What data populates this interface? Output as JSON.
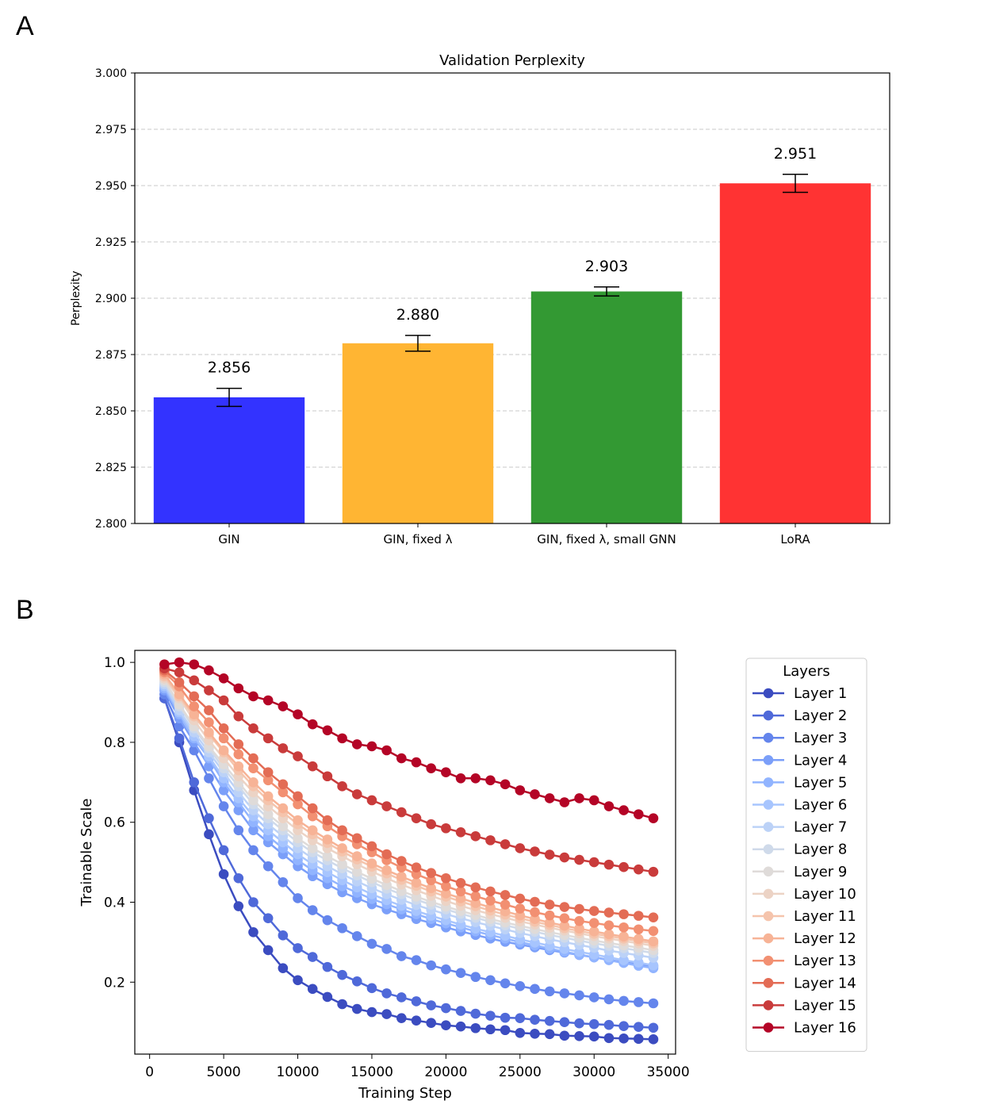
{
  "panels": {
    "a": "A",
    "b": "B"
  },
  "chart_data": [
    {
      "type": "bar",
      "title": "Validation Perplexity",
      "xlabel": "",
      "ylabel": "Perplexity",
      "ylim": [
        2.8,
        3.0
      ],
      "yticks": [
        "2.800",
        "2.825",
        "2.850",
        "2.875",
        "2.900",
        "2.925",
        "2.950",
        "2.975",
        "3.000"
      ],
      "grid": "y dashed",
      "categories": [
        "GIN",
        "GIN, fixed λ",
        "GIN, fixed λ, small GNN",
        "LoRA"
      ],
      "values": [
        2.856,
        2.88,
        2.903,
        2.951
      ],
      "errors": [
        0.004,
        0.0035,
        0.002,
        0.004
      ],
      "value_labels": [
        "2.856",
        "2.880",
        "2.903",
        "2.951"
      ],
      "colors": [
        "#3333ff",
        "#ffb533",
        "#339933",
        "#ff3333"
      ]
    },
    {
      "type": "line",
      "xlabel": "Training Step",
      "ylabel": "Trainable Scale",
      "xlim": [
        -1000,
        35500
      ],
      "ylim": [
        0.02,
        1.03
      ],
      "xticks": [
        "0",
        "5000",
        "10000",
        "15000",
        "20000",
        "25000",
        "30000",
        "35000"
      ],
      "yticks": [
        "0.2",
        "0.4",
        "0.6",
        "0.8",
        "1.0"
      ],
      "legend_title": "Layers",
      "legend_position": "outside-right",
      "x": [
        1000,
        2000,
        3000,
        4000,
        5000,
        6000,
        7000,
        8000,
        9000,
        10000,
        11000,
        12000,
        13000,
        14000,
        15000,
        16000,
        17000,
        18000,
        19000,
        20000,
        21000,
        22000,
        23000,
        24000,
        25000,
        26000,
        27000,
        28000,
        29000,
        30000,
        31000,
        32000,
        33000,
        34000
      ],
      "series": [
        {
          "name": "Layer 1",
          "color": "#3b4cc0",
          "values": [
            0.91,
            0.8,
            0.68,
            0.57,
            0.47,
            0.39,
            0.325,
            0.28,
            0.235,
            0.205,
            0.183,
            0.163,
            0.145,
            0.133,
            0.125,
            0.12,
            0.11,
            0.104,
            0.098,
            0.092,
            0.089,
            0.085,
            0.082,
            0.08,
            0.073,
            0.071,
            0.07,
            0.066,
            0.065,
            0.064,
            0.06,
            0.059,
            0.058,
            0.057
          ]
        },
        {
          "name": "Layer 2",
          "color": "#4f69d9",
          "values": [
            0.91,
            0.81,
            0.7,
            0.61,
            0.53,
            0.46,
            0.4,
            0.36,
            0.317,
            0.285,
            0.263,
            0.238,
            0.218,
            0.202,
            0.185,
            0.172,
            0.162,
            0.152,
            0.142,
            0.135,
            0.128,
            0.121,
            0.116,
            0.111,
            0.11,
            0.106,
            0.103,
            0.1,
            0.097,
            0.095,
            0.093,
            0.09,
            0.088,
            0.086
          ]
        },
        {
          "name": "Layer 3",
          "color": "#6485ec",
          "values": [
            0.92,
            0.84,
            0.78,
            0.71,
            0.64,
            0.58,
            0.53,
            0.49,
            0.45,
            0.41,
            0.38,
            0.355,
            0.335,
            0.315,
            0.296,
            0.283,
            0.265,
            0.255,
            0.242,
            0.232,
            0.223,
            0.213,
            0.205,
            0.197,
            0.19,
            0.183,
            0.177,
            0.172,
            0.167,
            0.162,
            0.157,
            0.153,
            0.15,
            0.147
          ]
        },
        {
          "name": "Layer 4",
          "color": "#7b9ff9",
          "values": [
            0.93,
            0.86,
            0.8,
            0.74,
            0.68,
            0.63,
            0.58,
            0.55,
            0.52,
            0.49,
            0.465,
            0.445,
            0.425,
            0.41,
            0.395,
            0.382,
            0.37,
            0.358,
            0.348,
            0.337,
            0.327,
            0.318,
            0.309,
            0.301,
            0.294,
            0.287,
            0.28,
            0.274,
            0.268,
            0.262,
            0.256,
            0.25,
            0.245,
            0.24
          ]
        },
        {
          "name": "Layer 5",
          "color": "#91b4ff",
          "values": [
            0.935,
            0.87,
            0.81,
            0.76,
            0.7,
            0.65,
            0.6,
            0.565,
            0.535,
            0.505,
            0.48,
            0.46,
            0.44,
            0.424,
            0.408,
            0.395,
            0.382,
            0.37,
            0.358,
            0.347,
            0.337,
            0.327,
            0.318,
            0.309,
            0.3,
            0.292,
            0.284,
            0.276,
            0.269,
            0.262,
            0.255,
            0.248,
            0.241,
            0.235
          ]
        },
        {
          "name": "Layer 6",
          "color": "#a7c5fe",
          "values": [
            0.94,
            0.875,
            0.815,
            0.765,
            0.71,
            0.66,
            0.615,
            0.58,
            0.55,
            0.52,
            0.495,
            0.475,
            0.455,
            0.437,
            0.42,
            0.405,
            0.391,
            0.378,
            0.366,
            0.355,
            0.344,
            0.334,
            0.325,
            0.316,
            0.307,
            0.299,
            0.291,
            0.283,
            0.276,
            0.269,
            0.262,
            0.255,
            0.249,
            0.242
          ]
        },
        {
          "name": "Layer 7",
          "color": "#bcd2f7",
          "values": [
            0.945,
            0.88,
            0.825,
            0.775,
            0.725,
            0.675,
            0.63,
            0.595,
            0.565,
            0.535,
            0.51,
            0.49,
            0.47,
            0.452,
            0.435,
            0.42,
            0.406,
            0.393,
            0.381,
            0.37,
            0.36,
            0.35,
            0.341,
            0.332,
            0.323,
            0.315,
            0.307,
            0.3,
            0.293,
            0.286,
            0.279,
            0.273,
            0.267,
            0.261
          ]
        },
        {
          "name": "Layer 8",
          "color": "#cfdaea",
          "values": [
            0.95,
            0.89,
            0.835,
            0.785,
            0.735,
            0.69,
            0.645,
            0.61,
            0.58,
            0.55,
            0.525,
            0.505,
            0.485,
            0.467,
            0.45,
            0.434,
            0.42,
            0.406,
            0.394,
            0.382,
            0.371,
            0.361,
            0.351,
            0.342,
            0.334,
            0.326,
            0.318,
            0.311,
            0.304,
            0.297,
            0.291,
            0.285,
            0.279,
            0.273
          ]
        },
        {
          "name": "Layer 9",
          "color": "#dfdbd9",
          "values": [
            0.955,
            0.895,
            0.84,
            0.79,
            0.745,
            0.7,
            0.655,
            0.62,
            0.59,
            0.56,
            0.535,
            0.515,
            0.495,
            0.476,
            0.459,
            0.443,
            0.428,
            0.414,
            0.401,
            0.389,
            0.378,
            0.368,
            0.358,
            0.349,
            0.341,
            0.333,
            0.325,
            0.318,
            0.311,
            0.304,
            0.298,
            0.292,
            0.286,
            0.28
          ]
        },
        {
          "name": "Layer 10",
          "color": "#ecd3c5",
          "values": [
            0.96,
            0.91,
            0.855,
            0.805,
            0.76,
            0.715,
            0.675,
            0.64,
            0.61,
            0.58,
            0.555,
            0.535,
            0.515,
            0.495,
            0.477,
            0.46,
            0.444,
            0.43,
            0.416,
            0.403,
            0.391,
            0.38,
            0.37,
            0.361,
            0.352,
            0.344,
            0.336,
            0.329,
            0.322,
            0.315,
            0.309,
            0.303,
            0.297,
            0.291
          ]
        },
        {
          "name": "Layer 11",
          "color": "#f5c4ac",
          "values": [
            0.965,
            0.915,
            0.865,
            0.82,
            0.775,
            0.73,
            0.69,
            0.655,
            0.625,
            0.595,
            0.57,
            0.548,
            0.527,
            0.507,
            0.489,
            0.472,
            0.456,
            0.441,
            0.427,
            0.414,
            0.402,
            0.39,
            0.379,
            0.369,
            0.36,
            0.351,
            0.343,
            0.335,
            0.328,
            0.321,
            0.315,
            0.309,
            0.303,
            0.297
          ]
        },
        {
          "name": "Layer 12",
          "color": "#f7b396",
          "values": [
            0.97,
            0.92,
            0.87,
            0.825,
            0.78,
            0.74,
            0.7,
            0.665,
            0.635,
            0.605,
            0.58,
            0.557,
            0.535,
            0.515,
            0.497,
            0.48,
            0.464,
            0.449,
            0.435,
            0.422,
            0.41,
            0.398,
            0.387,
            0.377,
            0.367,
            0.358,
            0.349,
            0.341,
            0.334,
            0.327,
            0.32,
            0.314,
            0.308,
            0.302
          ]
        },
        {
          "name": "Layer 13",
          "color": "#f29072",
          "values": [
            0.975,
            0.94,
            0.89,
            0.85,
            0.81,
            0.77,
            0.735,
            0.705,
            0.675,
            0.645,
            0.615,
            0.59,
            0.565,
            0.545,
            0.525,
            0.505,
            0.487,
            0.47,
            0.455,
            0.44,
            0.427,
            0.415,
            0.404,
            0.394,
            0.384,
            0.375,
            0.367,
            0.36,
            0.353,
            0.348,
            0.342,
            0.337,
            0.332,
            0.328
          ]
        },
        {
          "name": "Layer 14",
          "color": "#e36c55",
          "values": [
            0.98,
            0.95,
            0.915,
            0.88,
            0.835,
            0.795,
            0.76,
            0.725,
            0.695,
            0.665,
            0.635,
            0.605,
            0.58,
            0.56,
            0.54,
            0.52,
            0.503,
            0.487,
            0.473,
            0.46,
            0.448,
            0.437,
            0.427,
            0.418,
            0.409,
            0.401,
            0.394,
            0.388,
            0.383,
            0.378,
            0.374,
            0.37,
            0.366,
            0.362
          ]
        },
        {
          "name": "Layer 15",
          "color": "#c93b3b",
          "values": [
            0.985,
            0.975,
            0.955,
            0.93,
            0.905,
            0.865,
            0.835,
            0.81,
            0.785,
            0.765,
            0.74,
            0.715,
            0.69,
            0.67,
            0.655,
            0.64,
            0.625,
            0.61,
            0.595,
            0.585,
            0.575,
            0.565,
            0.555,
            0.545,
            0.535,
            0.527,
            0.519,
            0.512,
            0.506,
            0.5,
            0.494,
            0.488,
            0.482,
            0.476
          ]
        },
        {
          "name": "Layer 16",
          "color": "#b40426",
          "values": [
            0.995,
            1.0,
            0.995,
            0.98,
            0.96,
            0.935,
            0.915,
            0.905,
            0.89,
            0.87,
            0.845,
            0.83,
            0.81,
            0.795,
            0.79,
            0.78,
            0.76,
            0.75,
            0.735,
            0.725,
            0.71,
            0.71,
            0.705,
            0.695,
            0.68,
            0.67,
            0.66,
            0.65,
            0.66,
            0.655,
            0.64,
            0.63,
            0.62,
            0.61
          ]
        }
      ]
    }
  ]
}
